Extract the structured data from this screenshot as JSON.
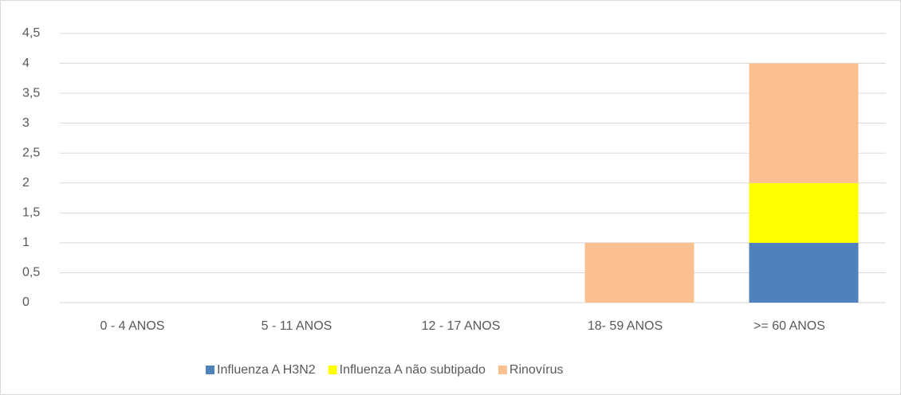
{
  "chart_data": {
    "type": "bar",
    "stacked": true,
    "categories": [
      "0 - 4 ANOS",
      "5 - 11 ANOS",
      "12 - 17 ANOS",
      "18- 59 ANOS",
      ">= 60 ANOS"
    ],
    "series": [
      {
        "name": "Influenza A H3N2",
        "color": "#4f81bd",
        "values": [
          0,
          0,
          0,
          0,
          1
        ]
      },
      {
        "name": "Influenza A não subtipado",
        "color": "#ffff00",
        "values": [
          0,
          0,
          0,
          0,
          1
        ]
      },
      {
        "name": "Rinovírus",
        "color": "#fac090",
        "values": [
          0,
          0,
          0,
          1,
          2
        ]
      }
    ],
    "ylim": [
      0,
      4.5
    ],
    "yticks": [
      0,
      {
        "value": 0.5,
        "label": "0,5"
      },
      1,
      {
        "value": 1.5,
        "label": "1,5"
      },
      2,
      {
        "value": 2.5,
        "label": "2,5"
      },
      3,
      {
        "value": 3.5,
        "label": "3,5"
      },
      4,
      {
        "value": 4.5,
        "label": "4,5"
      }
    ],
    "grid": true,
    "legend": "bottom"
  }
}
